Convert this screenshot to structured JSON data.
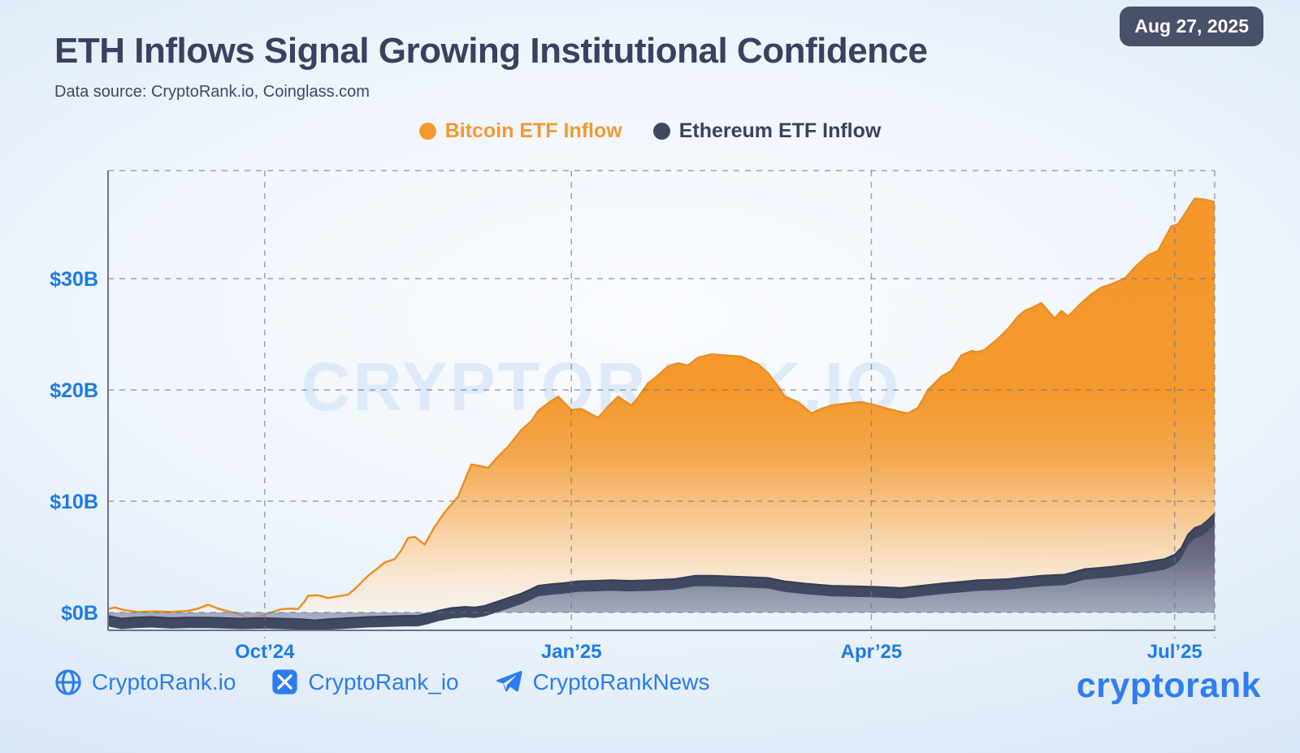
{
  "header": {
    "title": "ETH Inflows Signal Growing Institutional Confidence",
    "subtitle": "Data source: CryptoRank.io, Coinglass.com",
    "date_badge": "Aug 27, 2025"
  },
  "legend": [
    {
      "label": "Bitcoin ETF Inflow",
      "color": "#f5992d"
    },
    {
      "label": "Ethereum ETF Inflow",
      "color": "#3f4660"
    }
  ],
  "watermark": "CRYPTORANK.IO",
  "footer": {
    "website": "CryptoRank.io",
    "twitter": "CryptoRank_io",
    "telegram": "CryptoRankNews",
    "logo": "cryptorank"
  },
  "colors": {
    "bitcoin": "#f5992d",
    "bitcoin_stroke": "#ee8c1d",
    "ethereum": "#3f4660",
    "ethereum_stroke": "#353c56",
    "axis_label_blue": "#1c7ce9",
    "grid": "#6f7689",
    "axis": "#6c7386",
    "title_navy": "#3a4160",
    "badge_bg": "#48506a",
    "footer_blue": "#2b7cf0",
    "watermark_blue": "#d6e6f8"
  },
  "chart_data": {
    "type": "area",
    "title": "Cumulative ETF inflows, $B",
    "xlabel": "",
    "ylabel": "$B",
    "grid": "dashed",
    "legend_position": "top",
    "x_domain": [
      "2024-08-15",
      "2025-07-13"
    ],
    "ylim": [
      -1.6,
      39.7
    ],
    "x_ticks": [
      {
        "date": "2024-10-01",
        "label": "Oct’24"
      },
      {
        "date": "2025-01-01",
        "label": "Jan’25"
      },
      {
        "date": "2025-04-01",
        "label": "Apr’25"
      },
      {
        "date": "2025-07-01",
        "label": "Jul’25"
      }
    ],
    "y_ticks": [
      {
        "value": 0,
        "label": "$0B"
      },
      {
        "value": 10,
        "label": "$10B"
      },
      {
        "value": 20,
        "label": "$20B"
      },
      {
        "value": 30,
        "label": "$30B"
      }
    ],
    "series": [
      {
        "name": "Bitcoin ETF Inflow",
        "color": "#f5992d",
        "points": [
          [
            "2024-08-15",
            0.3
          ],
          [
            "2024-08-17",
            0.45
          ],
          [
            "2024-08-20",
            0.2
          ],
          [
            "2024-08-24",
            0.05
          ],
          [
            "2024-08-29",
            0.1
          ],
          [
            "2024-09-03",
            0.05
          ],
          [
            "2024-09-08",
            0.15
          ],
          [
            "2024-09-11",
            0.35
          ],
          [
            "2024-09-14",
            0.7
          ],
          [
            "2024-09-17",
            0.35
          ],
          [
            "2024-09-20",
            0.1
          ],
          [
            "2024-09-23",
            -0.1
          ],
          [
            "2024-09-26",
            -0.5
          ],
          [
            "2024-09-30",
            -0.3
          ],
          [
            "2024-10-03",
            0.0
          ],
          [
            "2024-10-06",
            0.3
          ],
          [
            "2024-10-09",
            0.35
          ],
          [
            "2024-10-11",
            0.3
          ],
          [
            "2024-10-13",
            1.0
          ],
          [
            "2024-10-14",
            1.5
          ],
          [
            "2024-10-17",
            1.55
          ],
          [
            "2024-10-20",
            1.3
          ],
          [
            "2024-10-23",
            1.45
          ],
          [
            "2024-10-26",
            1.6
          ],
          [
            "2024-10-28",
            2.1
          ],
          [
            "2024-11-01",
            3.3
          ],
          [
            "2024-11-04",
            4.0
          ],
          [
            "2024-11-06",
            4.5
          ],
          [
            "2024-11-09",
            4.8
          ],
          [
            "2024-11-11",
            5.6
          ],
          [
            "2024-11-13",
            6.7
          ],
          [
            "2024-11-15",
            6.8
          ],
          [
            "2024-11-18",
            6.1
          ],
          [
            "2024-11-21",
            7.7
          ],
          [
            "2024-11-24",
            9.0
          ],
          [
            "2024-11-28",
            10.4
          ],
          [
            "2024-12-01",
            12.6
          ],
          [
            "2024-12-02",
            13.3
          ],
          [
            "2024-12-04",
            13.2
          ],
          [
            "2024-12-07",
            13.0
          ],
          [
            "2024-12-10",
            14.0
          ],
          [
            "2024-12-13",
            14.9
          ],
          [
            "2024-12-17",
            16.4
          ],
          [
            "2024-12-20",
            17.2
          ],
          [
            "2024-12-22",
            18.1
          ],
          [
            "2024-12-25",
            18.8
          ],
          [
            "2024-12-28",
            19.4
          ],
          [
            "2024-12-30",
            18.8
          ],
          [
            "2025-01-01",
            18.2
          ],
          [
            "2025-01-04",
            18.3
          ],
          [
            "2025-01-07",
            17.8
          ],
          [
            "2025-01-09",
            17.5
          ],
          [
            "2025-01-12",
            18.5
          ],
          [
            "2025-01-15",
            19.4
          ],
          [
            "2025-01-17",
            19.0
          ],
          [
            "2025-01-19",
            18.6
          ],
          [
            "2025-01-21",
            19.3
          ],
          [
            "2025-01-24",
            20.6
          ],
          [
            "2025-01-27",
            21.3
          ],
          [
            "2025-01-30",
            22.1
          ],
          [
            "2025-02-02",
            22.4
          ],
          [
            "2025-02-05",
            22.2
          ],
          [
            "2025-02-08",
            22.9
          ],
          [
            "2025-02-12",
            23.2
          ],
          [
            "2025-02-16",
            23.1
          ],
          [
            "2025-02-21",
            23.0
          ],
          [
            "2025-02-26",
            22.3
          ],
          [
            "2025-03-01",
            21.5
          ],
          [
            "2025-03-04",
            20.3
          ],
          [
            "2025-03-06",
            19.4
          ],
          [
            "2025-03-10",
            18.9
          ],
          [
            "2025-03-14",
            17.9
          ],
          [
            "2025-03-17",
            18.3
          ],
          [
            "2025-03-20",
            18.6
          ],
          [
            "2025-03-25",
            18.8
          ],
          [
            "2025-03-29",
            18.9
          ],
          [
            "2025-04-01",
            18.7
          ],
          [
            "2025-04-06",
            18.3
          ],
          [
            "2025-04-10",
            18.0
          ],
          [
            "2025-04-12",
            17.9
          ],
          [
            "2025-04-15",
            18.4
          ],
          [
            "2025-04-18",
            20.0
          ],
          [
            "2025-04-22",
            21.2
          ],
          [
            "2025-04-25",
            21.7
          ],
          [
            "2025-04-28",
            23.1
          ],
          [
            "2025-05-01",
            23.5
          ],
          [
            "2025-05-03",
            23.4
          ],
          [
            "2025-05-05",
            23.6
          ],
          [
            "2025-05-09",
            24.6
          ],
          [
            "2025-05-12",
            25.5
          ],
          [
            "2025-05-15",
            26.6
          ],
          [
            "2025-05-17",
            27.1
          ],
          [
            "2025-05-20",
            27.5
          ],
          [
            "2025-05-22",
            27.8
          ],
          [
            "2025-05-26",
            26.4
          ],
          [
            "2025-05-28",
            27.1
          ],
          [
            "2025-05-30",
            26.6
          ],
          [
            "2025-06-03",
            27.8
          ],
          [
            "2025-06-06",
            28.6
          ],
          [
            "2025-06-09",
            29.2
          ],
          [
            "2025-06-12",
            29.5
          ],
          [
            "2025-06-16",
            30.0
          ],
          [
            "2025-06-19",
            31.0
          ],
          [
            "2025-06-23",
            32.1
          ],
          [
            "2025-06-26",
            32.5
          ],
          [
            "2025-06-30",
            34.7
          ],
          [
            "2025-07-02",
            34.9
          ],
          [
            "2025-07-04",
            35.8
          ],
          [
            "2025-07-07",
            37.2
          ],
          [
            "2025-07-10",
            37.1
          ],
          [
            "2025-07-13",
            36.9
          ]
        ]
      },
      {
        "name": "Ethereum ETF Inflow",
        "color": "#3f4660",
        "points": [
          [
            "2024-08-15",
            -0.3
          ],
          [
            "2024-08-19",
            -0.55
          ],
          [
            "2024-08-23",
            -0.45
          ],
          [
            "2024-08-28",
            -0.4
          ],
          [
            "2024-09-03",
            -0.5
          ],
          [
            "2024-09-08",
            -0.45
          ],
          [
            "2024-09-14",
            -0.45
          ],
          [
            "2024-09-19",
            -0.5
          ],
          [
            "2024-09-24",
            -0.55
          ],
          [
            "2024-10-01",
            -0.5
          ],
          [
            "2024-10-06",
            -0.55
          ],
          [
            "2024-10-12",
            -0.6
          ],
          [
            "2024-10-16",
            -0.7
          ],
          [
            "2024-10-20",
            -0.6
          ],
          [
            "2024-10-26",
            -0.5
          ],
          [
            "2024-11-01",
            -0.4
          ],
          [
            "2024-11-07",
            -0.35
          ],
          [
            "2024-11-12",
            -0.3
          ],
          [
            "2024-11-16",
            -0.3
          ],
          [
            "2024-11-19",
            -0.1
          ],
          [
            "2024-11-22",
            0.15
          ],
          [
            "2024-11-26",
            0.4
          ],
          [
            "2024-11-30",
            0.5
          ],
          [
            "2024-12-03",
            0.45
          ],
          [
            "2024-12-06",
            0.6
          ],
          [
            "2024-12-09",
            0.9
          ],
          [
            "2024-12-13",
            1.3
          ],
          [
            "2024-12-17",
            1.7
          ],
          [
            "2024-12-20",
            2.1
          ],
          [
            "2024-12-22",
            2.4
          ],
          [
            "2024-12-26",
            2.55
          ],
          [
            "2024-12-30",
            2.65
          ],
          [
            "2025-01-03",
            2.8
          ],
          [
            "2025-01-08",
            2.85
          ],
          [
            "2025-01-13",
            2.9
          ],
          [
            "2025-01-19",
            2.85
          ],
          [
            "2025-01-25",
            2.9
          ],
          [
            "2025-02-01",
            3.0
          ],
          [
            "2025-02-07",
            3.3
          ],
          [
            "2025-02-12",
            3.3
          ],
          [
            "2025-02-17",
            3.25
          ],
          [
            "2025-02-22",
            3.2
          ],
          [
            "2025-03-01",
            3.1
          ],
          [
            "2025-03-06",
            2.8
          ],
          [
            "2025-03-12",
            2.6
          ],
          [
            "2025-03-20",
            2.4
          ],
          [
            "2025-03-27",
            2.35
          ],
          [
            "2025-04-03",
            2.3
          ],
          [
            "2025-04-10",
            2.2
          ],
          [
            "2025-04-16",
            2.4
          ],
          [
            "2025-04-22",
            2.6
          ],
          [
            "2025-04-28",
            2.75
          ],
          [
            "2025-05-03",
            2.9
          ],
          [
            "2025-05-08",
            2.95
          ],
          [
            "2025-05-12",
            3.0
          ],
          [
            "2025-05-17",
            3.15
          ],
          [
            "2025-05-22",
            3.3
          ],
          [
            "2025-05-29",
            3.4
          ],
          [
            "2025-06-04",
            3.9
          ],
          [
            "2025-06-08",
            4.0
          ],
          [
            "2025-06-12",
            4.1
          ],
          [
            "2025-06-16",
            4.25
          ],
          [
            "2025-06-20",
            4.4
          ],
          [
            "2025-06-24",
            4.6
          ],
          [
            "2025-06-28",
            4.8
          ],
          [
            "2025-07-01",
            5.2
          ],
          [
            "2025-07-03",
            5.8
          ],
          [
            "2025-07-05",
            7.0
          ],
          [
            "2025-07-07",
            7.6
          ],
          [
            "2025-07-09",
            7.8
          ],
          [
            "2025-07-11",
            8.3
          ],
          [
            "2025-07-13",
            8.9
          ]
        ]
      }
    ]
  }
}
